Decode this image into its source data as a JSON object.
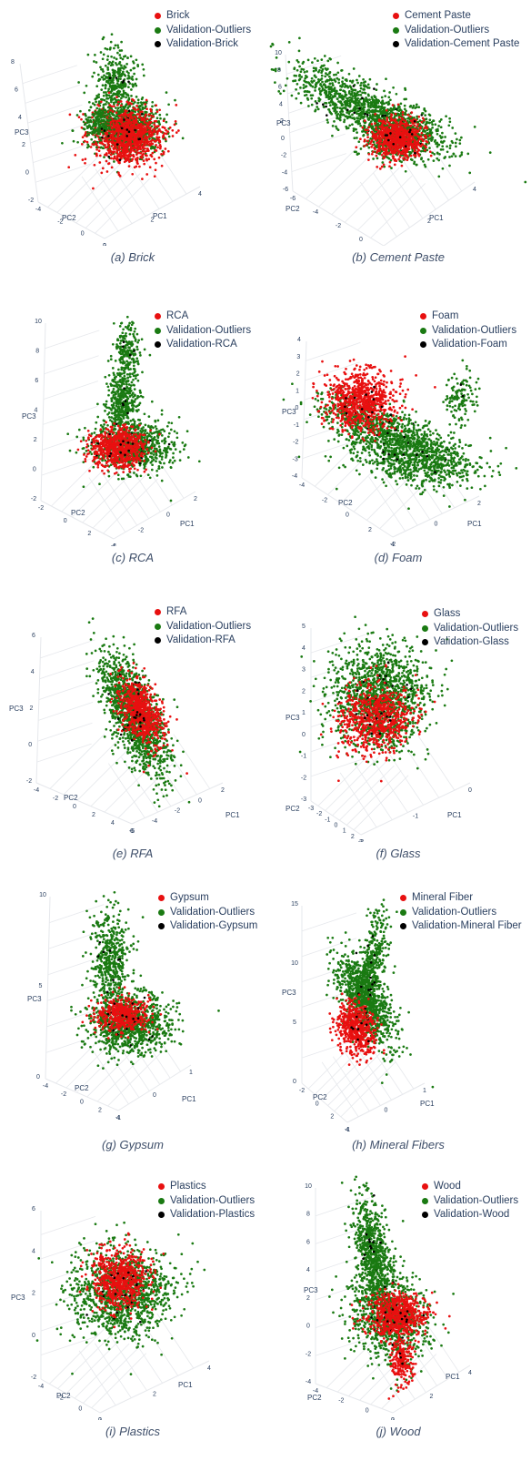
{
  "colors": {
    "target": "#e81010",
    "outlier": "#1a7a12",
    "validation": "#000000",
    "axis_text": "#2a3f5f",
    "grid": "#e6e8ec"
  },
  "chart_data": [
    {
      "type": "scatter",
      "caption": "(a) Brick",
      "legend": [
        "Brick",
        "Validation-Outliers",
        "Validation-Brick"
      ],
      "axes": {
        "x": "PC1",
        "y": "PC2",
        "z": "PC3"
      },
      "pc3_ticks": [
        "8",
        "6",
        "4",
        "2",
        "0",
        "-2"
      ],
      "pc2_ticks": [
        "-4",
        "-2",
        "0",
        "2"
      ],
      "pc1_ticks": [
        "0",
        "2",
        "4"
      ],
      "clusters": [
        {
          "series": "Validation-Outliers",
          "points": [
            [
              -1.5,
              0.5,
              6.5
            ],
            [
              0.0,
              0.0,
              2.0
            ],
            [
              1.5,
              0.5,
              0.5
            ]
          ]
        },
        {
          "series": "Brick",
          "points": [
            [
              -1.0,
              0.0,
              0.5
            ],
            [
              0.5,
              0.0,
              0.0
            ],
            [
              1.5,
              1.0,
              1.0
            ]
          ]
        }
      ]
    },
    {
      "type": "scatter",
      "caption": "(b) Cement Paste",
      "legend": [
        "Cement Paste",
        "Validation-Outliers",
        "Validation-Cement Paste"
      ],
      "axes": {
        "x": "PC1",
        "y": "PC2",
        "z": "PC3"
      },
      "pc3_ticks": [
        "10",
        "8",
        "6",
        "4",
        "2",
        "0",
        "-2",
        "-4",
        "-6"
      ],
      "pc2_ticks": [
        "-6",
        "-4",
        "-2",
        "0",
        "2"
      ],
      "pc1_ticks": [
        "0",
        "2",
        "4"
      ],
      "clusters": [
        {
          "series": "Validation-Outliers",
          "points": [
            [
              -2.0,
              -4.0,
              8.0
            ],
            [
              0.0,
              -1.0,
              2.0
            ],
            [
              2.0,
              1.0,
              0.0
            ]
          ]
        },
        {
          "series": "Cement Paste",
          "points": [
            [
              1.5,
              0.5,
              0.0
            ],
            [
              2.5,
              1.0,
              0.5
            ]
          ]
        }
      ]
    },
    {
      "type": "scatter",
      "caption": "(c) RCA",
      "legend": [
        "RCA",
        "Validation-Outliers",
        "Validation-RCA"
      ],
      "axes": {
        "x": "PC1",
        "y": "PC2",
        "z": "PC3"
      },
      "pc3_ticks": [
        "10",
        "8",
        "6",
        "4",
        "2",
        "0",
        "-2"
      ],
      "pc2_ticks": [
        "-2",
        "0",
        "2",
        "4"
      ],
      "pc1_ticks": [
        "-4",
        "-2",
        "0",
        "2"
      ],
      "clusters": [
        {
          "series": "Validation-Outliers",
          "points": [
            [
              0.0,
              0.0,
              9.0
            ],
            [
              -0.5,
              0.5,
              3.0
            ],
            [
              1.5,
              1.5,
              0.0
            ]
          ]
        },
        {
          "series": "RCA",
          "points": [
            [
              -0.5,
              0.5,
              1.0
            ],
            [
              0.5,
              1.0,
              0.5
            ]
          ]
        }
      ]
    },
    {
      "type": "scatter",
      "caption": "(d) Foam",
      "legend": [
        "Foam",
        "Validation-Outliers",
        "Validation-Foam"
      ],
      "axes": {
        "x": "PC1",
        "y": "PC2",
        "z": "PC3"
      },
      "pc3_ticks": [
        "4",
        "3",
        "2",
        "1",
        "0",
        "-1",
        "-2",
        "-3",
        "-4"
      ],
      "pc2_ticks": [
        "-4",
        "-2",
        "0",
        "2",
        "4"
      ],
      "pc1_ticks": [
        "-2",
        "0",
        "2"
      ],
      "clusters": [
        {
          "series": "Validation-Outliers",
          "points": [
            [
              -3.0,
              -3.0,
              0.0
            ],
            [
              2.0,
              3.0,
              -2.0
            ],
            [
              1.0,
              1.0,
              1.0
            ]
          ]
        },
        {
          "series": "Foam",
          "points": [
            [
              -1.0,
              -1.0,
              1.5
            ],
            [
              0.0,
              0.0,
              2.0
            ]
          ]
        }
      ]
    },
    {
      "type": "scatter",
      "caption": "(e) RFA",
      "legend": [
        "RFA",
        "Validation-Outliers",
        "Validation-RFA"
      ],
      "axes": {
        "x": "PC1",
        "y": "PC2",
        "z": "PC3"
      },
      "pc3_ticks": [
        "6",
        "4",
        "2",
        "0",
        "-2"
      ],
      "pc2_ticks": [
        "-4",
        "-2",
        "0",
        "2",
        "4",
        "6"
      ],
      "pc1_ticks": [
        "-6",
        "-4",
        "-2",
        "0",
        "2"
      ],
      "clusters": [
        {
          "series": "Validation-Outliers",
          "points": [
            [
              -1.0,
              -2.0,
              4.0
            ],
            [
              0.0,
              0.0,
              1.0
            ],
            [
              1.0,
              2.0,
              -1.0
            ]
          ]
        },
        {
          "series": "RFA",
          "points": [
            [
              0.0,
              0.0,
              1.5
            ],
            [
              0.5,
              0.5,
              0.5
            ]
          ]
        }
      ]
    },
    {
      "type": "scatter",
      "caption": "(f) Glass",
      "legend": [
        "Glass",
        "Validation-Outliers",
        "Validation-Glass"
      ],
      "axes": {
        "x": "PC1",
        "y": "PC2",
        "z": "PC3"
      },
      "pc3_ticks": [
        "5",
        "4",
        "3",
        "2",
        "1",
        "0",
        "-1",
        "-2",
        "-3"
      ],
      "pc2_ticks": [
        "-3",
        "-2",
        "-1",
        "0",
        "1",
        "2",
        "3"
      ],
      "pc1_ticks": [
        "-2",
        "-1",
        "0"
      ],
      "clusters": [
        {
          "series": "Validation-Outliers",
          "points": [
            [
              -1.0,
              -1.0,
              3.0
            ],
            [
              0.0,
              0.0,
              1.5
            ],
            [
              1.0,
              1.0,
              0.5
            ]
          ]
        },
        {
          "series": "Glass",
          "points": [
            [
              0.0,
              0.5,
              0.0
            ],
            [
              0.5,
              1.0,
              -1.0
            ]
          ]
        }
      ]
    },
    {
      "type": "scatter",
      "caption": "(g) Gypsum",
      "legend": [
        "Gypsum",
        "Validation-Outliers",
        "Validation-Gypsum"
      ],
      "axes": {
        "x": "PC1",
        "y": "PC2",
        "z": "PC3"
      },
      "pc3_ticks": [
        "10",
        "5",
        "0"
      ],
      "pc2_ticks": [
        "-4",
        "-2",
        "0",
        "2",
        "4"
      ],
      "pc1_ticks": [
        "-1",
        "0",
        "1"
      ],
      "clusters": [
        {
          "series": "Validation-Outliers",
          "points": [
            [
              0.0,
              0.0,
              11.0
            ],
            [
              0.5,
              0.5,
              3.0
            ],
            [
              1.0,
              1.0,
              0.0
            ]
          ]
        },
        {
          "series": "Gypsum",
          "points": [
            [
              0.0,
              0.0,
              1.0
            ],
            [
              0.5,
              0.5,
              1.0
            ]
          ]
        }
      ]
    },
    {
      "type": "scatter",
      "caption": "(h) Mineral Fibers",
      "legend": [
        "Mineral Fiber",
        "Validation-Outliers",
        "Validation-Mineral Fiber"
      ],
      "axes": {
        "x": "PC1",
        "y": "PC2",
        "z": "PC3"
      },
      "pc3_ticks": [
        "15",
        "10",
        "5",
        "0"
      ],
      "pc2_ticks": [
        "-2",
        "0",
        "2",
        "4"
      ],
      "pc1_ticks": [
        "-1",
        "0",
        "1"
      ],
      "clusters": [
        {
          "series": "Validation-Outliers",
          "points": [
            [
              -1.0,
              -1.0,
              10.0
            ],
            [
              0.5,
              0.5,
              5.0
            ],
            [
              1.0,
              1.0,
              2.0
            ]
          ]
        },
        {
          "series": "Mineral Fiber",
          "points": [
            [
              -0.5,
              0.0,
              1.0
            ],
            [
              0.0,
              0.5,
              0.0
            ]
          ]
        }
      ]
    },
    {
      "type": "scatter",
      "caption": "(i) Plastics",
      "legend": [
        "Plastics",
        "Validation-Outliers",
        "Validation-Plastics"
      ],
      "axes": {
        "x": "PC1",
        "y": "PC2",
        "z": "PC3"
      },
      "pc3_ticks": [
        "6",
        "4",
        "2",
        "0",
        "-2"
      ],
      "pc2_ticks": [
        "-4",
        "-2",
        "0",
        "2"
      ],
      "pc1_ticks": [
        "0",
        "2",
        "4"
      ],
      "clusters": [
        {
          "series": "Validation-Outliers",
          "points": [
            [
              -1.0,
              -1.0,
              5.0
            ],
            [
              0.0,
              0.0,
              2.0
            ],
            [
              1.0,
              1.0,
              0.0
            ]
          ]
        },
        {
          "series": "Plastics",
          "points": [
            [
              0.0,
              0.0,
              2.5
            ],
            [
              0.5,
              0.5,
              1.5
            ]
          ]
        }
      ]
    },
    {
      "type": "scatter",
      "caption": "(j) Wood",
      "legend": [
        "Wood",
        "Validation-Outliers",
        "Validation-Wood"
      ],
      "axes": {
        "x": "PC1",
        "y": "PC2",
        "z": "PC3"
      },
      "pc3_ticks": [
        "10",
        "8",
        "6",
        "4",
        "2",
        "0",
        "-2",
        "-4"
      ],
      "pc2_ticks": [
        "-4",
        "-2",
        "0",
        "2"
      ],
      "pc1_ticks": [
        "0",
        "2",
        "4"
      ],
      "clusters": [
        {
          "series": "Validation-Outliers",
          "points": [
            [
              -1.0,
              -1.0,
              8.0
            ],
            [
              0.0,
              0.0,
              3.0
            ],
            [
              1.0,
              1.0,
              0.0
            ]
          ]
        },
        {
          "series": "Wood",
          "points": [
            [
              0.5,
              0.5,
              0.5
            ],
            [
              1.0,
              1.5,
              -2.0
            ]
          ]
        }
      ]
    }
  ]
}
